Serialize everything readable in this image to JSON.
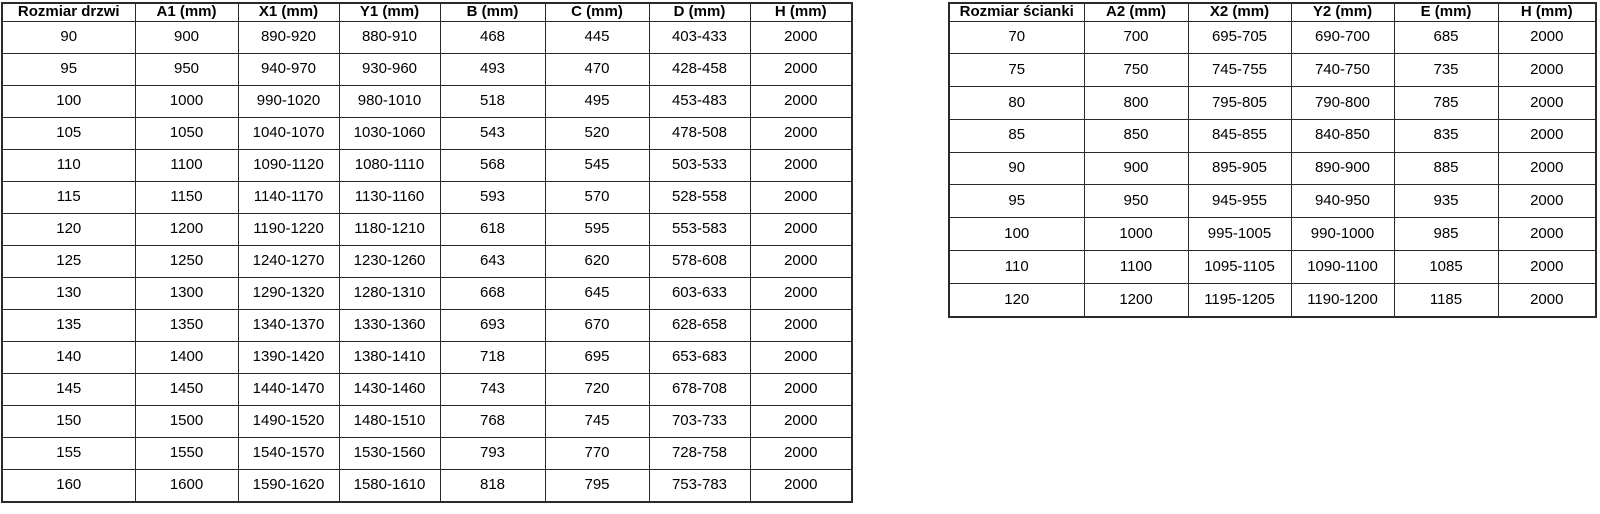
{
  "colors": {
    "background": "#ffffff",
    "border": "#2a2a2a",
    "text": "#000000"
  },
  "tables": {
    "door": {
      "headers": [
        "Rozmiar drzwi",
        "A1 (mm)",
        "X1 (mm)",
        "Y1 (mm)",
        "B (mm)",
        "C (mm)",
        "D (mm)",
        "H (mm)"
      ],
      "rows": [
        [
          "90",
          "900",
          "890-920",
          "880-910",
          "468",
          "445",
          "403-433",
          "2000"
        ],
        [
          "95",
          "950",
          "940-970",
          "930-960",
          "493",
          "470",
          "428-458",
          "2000"
        ],
        [
          "100",
          "1000",
          "990-1020",
          "980-1010",
          "518",
          "495",
          "453-483",
          "2000"
        ],
        [
          "105",
          "1050",
          "1040-1070",
          "1030-1060",
          "543",
          "520",
          "478-508",
          "2000"
        ],
        [
          "110",
          "1100",
          "1090-1120",
          "1080-1110",
          "568",
          "545",
          "503-533",
          "2000"
        ],
        [
          "115",
          "1150",
          "1140-1170",
          "1130-1160",
          "593",
          "570",
          "528-558",
          "2000"
        ],
        [
          "120",
          "1200",
          "1190-1220",
          "1180-1210",
          "618",
          "595",
          "553-583",
          "2000"
        ],
        [
          "125",
          "1250",
          "1240-1270",
          "1230-1260",
          "643",
          "620",
          "578-608",
          "2000"
        ],
        [
          "130",
          "1300",
          "1290-1320",
          "1280-1310",
          "668",
          "645",
          "603-633",
          "2000"
        ],
        [
          "135",
          "1350",
          "1340-1370",
          "1330-1360",
          "693",
          "670",
          "628-658",
          "2000"
        ],
        [
          "140",
          "1400",
          "1390-1420",
          "1380-1410",
          "718",
          "695",
          "653-683",
          "2000"
        ],
        [
          "145",
          "1450",
          "1440-1470",
          "1430-1460",
          "743",
          "720",
          "678-708",
          "2000"
        ],
        [
          "150",
          "1500",
          "1490-1520",
          "1480-1510",
          "768",
          "745",
          "703-733",
          "2000"
        ],
        [
          "155",
          "1550",
          "1540-1570",
          "1530-1560",
          "793",
          "770",
          "728-758",
          "2000"
        ],
        [
          "160",
          "1600",
          "1590-1620",
          "1580-1610",
          "818",
          "795",
          "753-783",
          "2000"
        ]
      ]
    },
    "wall": {
      "headers": [
        "Rozmiar ścianki",
        "A2 (mm)",
        "X2 (mm)",
        "Y2 (mm)",
        "E (mm)",
        "H (mm)"
      ],
      "rows": [
        [
          "70",
          "700",
          "695-705",
          "690-700",
          "685",
          "2000"
        ],
        [
          "75",
          "750",
          "745-755",
          "740-750",
          "735",
          "2000"
        ],
        [
          "80",
          "800",
          "795-805",
          "790-800",
          "785",
          "2000"
        ],
        [
          "85",
          "850",
          "845-855",
          "840-850",
          "835",
          "2000"
        ],
        [
          "90",
          "900",
          "895-905",
          "890-900",
          "885",
          "2000"
        ],
        [
          "95",
          "950",
          "945-955",
          "940-950",
          "935",
          "2000"
        ],
        [
          "100",
          "1000",
          "995-1005",
          "990-1000",
          "985",
          "2000"
        ],
        [
          "110",
          "1100",
          "1095-1105",
          "1090-1100",
          "1085",
          "2000"
        ],
        [
          "120",
          "1200",
          "1195-1205",
          "1190-1200",
          "1185",
          "2000"
        ]
      ]
    }
  }
}
